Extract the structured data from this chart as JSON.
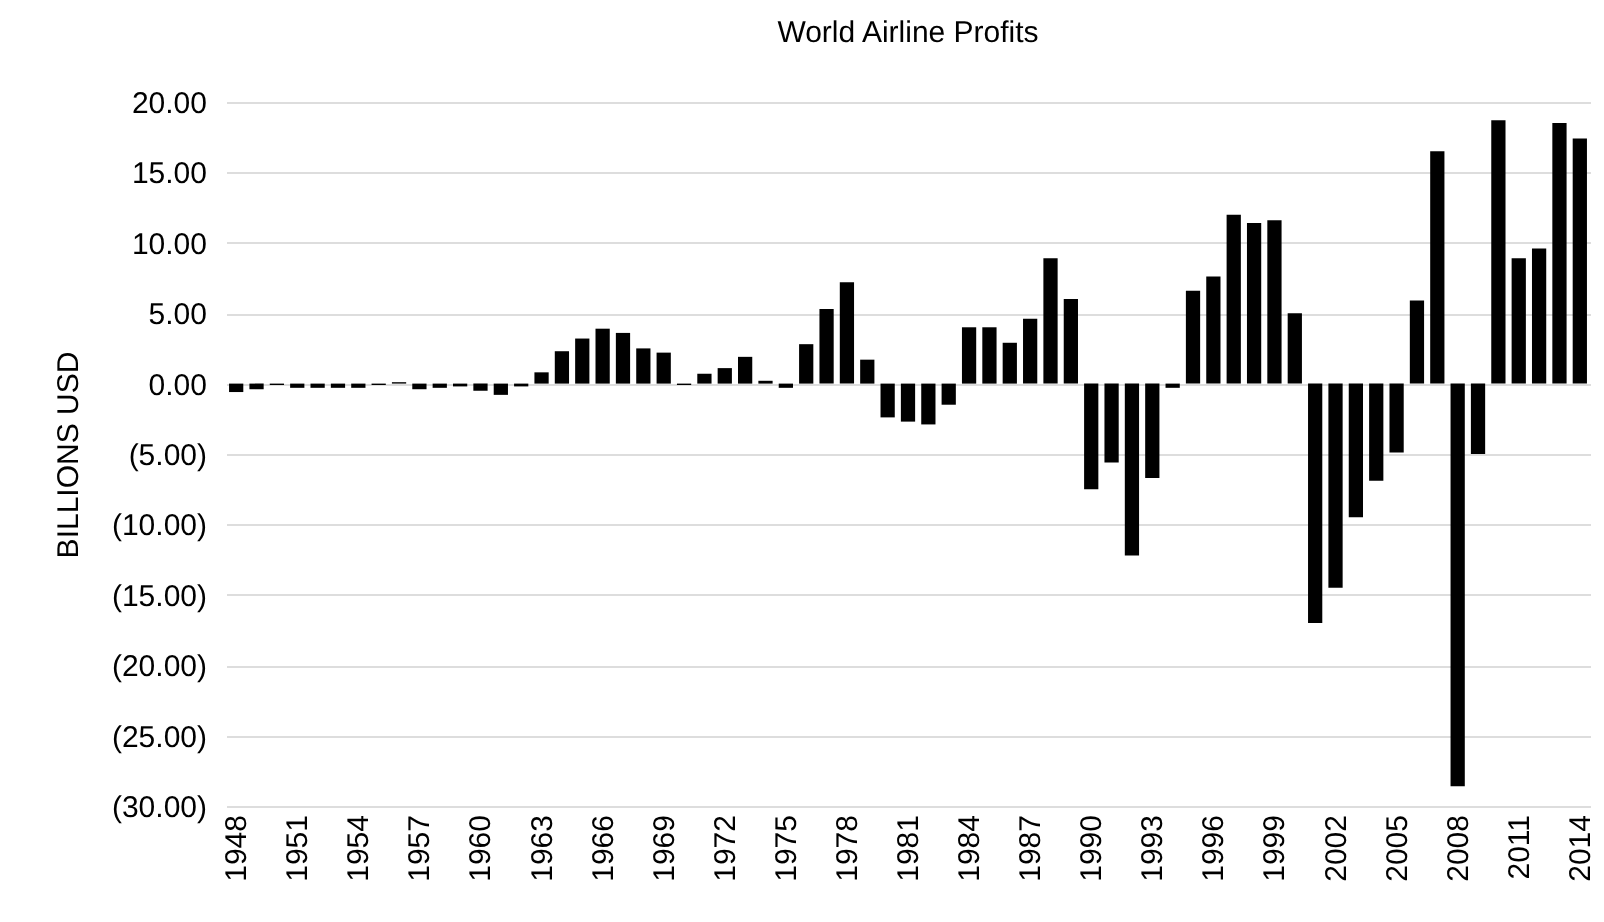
{
  "chart_data": {
    "type": "bar",
    "title": "World Airline Profits",
    "ylabel": "BILLIONS USD",
    "categories": [
      "1948",
      null,
      null,
      "1951",
      null,
      null,
      "1954",
      null,
      null,
      "1957",
      null,
      null,
      "1960",
      null,
      null,
      "1963",
      null,
      null,
      "1966",
      null,
      null,
      "1969",
      null,
      null,
      "1972",
      null,
      null,
      "1975",
      null,
      null,
      "1978",
      null,
      null,
      "1981",
      null,
      null,
      "1984",
      null,
      null,
      "1987",
      null,
      null,
      "1990",
      null,
      null,
      "1993",
      null,
      null,
      "1996",
      null,
      null,
      "1999",
      null,
      null,
      "2002",
      null,
      null,
      "2005",
      null,
      null,
      "2008",
      null,
      null,
      "2011",
      null,
      null,
      "2014"
    ],
    "values": [
      -0.6,
      -0.4,
      -0.1,
      -0.3,
      -0.3,
      -0.3,
      -0.3,
      -0.1,
      0.1,
      -0.4,
      -0.3,
      -0.2,
      -0.5,
      -0.8,
      -0.2,
      0.8,
      2.3,
      3.2,
      3.9,
      3.6,
      2.5,
      2.2,
      -0.1,
      0.7,
      1.1,
      1.9,
      0.2,
      -0.3,
      2.8,
      5.3,
      7.2,
      1.7,
      -2.4,
      -2.7,
      -2.9,
      -1.5,
      4.0,
      4.0,
      2.9,
      4.6,
      8.9,
      6.0,
      -7.5,
      -5.6,
      -12.2,
      -6.7,
      -0.3,
      6.6,
      7.6,
      12.0,
      11.4,
      11.6,
      5.0,
      -17.0,
      -14.5,
      -9.5,
      -6.9,
      -4.9,
      5.9,
      16.5,
      -28.6,
      -5.0,
      18.7,
      8.9,
      9.6,
      18.5,
      17.4
    ],
    "color": "#000000",
    "ylim": [
      -30,
      20
    ],
    "yticks": [
      {
        "value": -30,
        "label": "(30.00)"
      },
      {
        "value": -25,
        "label": "(25.00)"
      },
      {
        "value": -20,
        "label": "(20.00)"
      },
      {
        "value": -15,
        "label": "(15.00)"
      },
      {
        "value": -10,
        "label": "(10.00)"
      },
      {
        "value": -5,
        "label": "(5.00)"
      },
      {
        "value": 0,
        "label": "0.00"
      },
      {
        "value": 5,
        "label": "5.00"
      },
      {
        "value": 10,
        "label": "10.00"
      },
      {
        "value": 15,
        "label": "15.00"
      },
      {
        "value": 20,
        "label": "20.00"
      }
    ],
    "grid": "y"
  }
}
